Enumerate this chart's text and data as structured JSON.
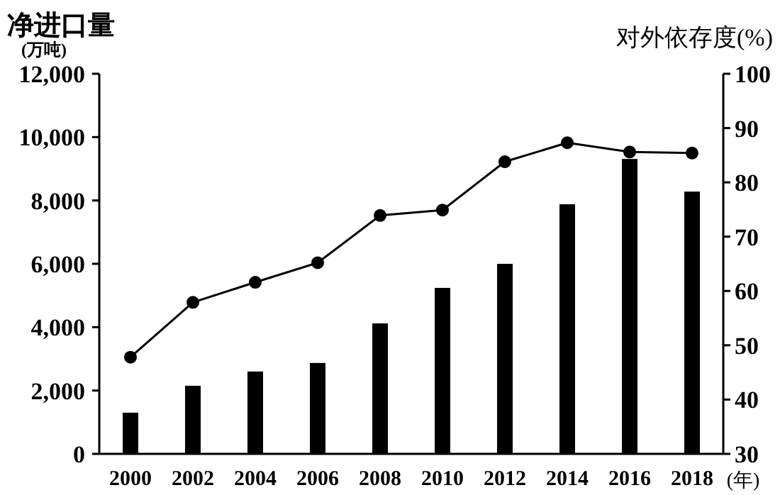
{
  "chart_data": {
    "type": "bar",
    "ylabel": "净进口量\n(万吨)",
    "y2label": "对外依存度(%)",
    "xlabel": "(年)",
    "categories": [
      "2000",
      "2002",
      "2004",
      "2006",
      "2008",
      "2010",
      "2012",
      "2014",
      "2016",
      "2018"
    ],
    "series": [
      {
        "color": "#000000",
        "values": [
          1300,
          2150,
          2600,
          2870,
          4120,
          5240,
          6000,
          7880,
          9310,
          8280
        ]
      },
      {
        "type": "line",
        "axis": "y2",
        "color": "#000000",
        "values": [
          47.8,
          57.9,
          61.6,
          65.2,
          73.9,
          74.9,
          83.8,
          87.3,
          85.6,
          85.4
        ]
      }
    ],
    "ylim": [
      0,
      12000
    ],
    "yticks": [
      {
        "value": 0,
        "label": "0"
      },
      {
        "value": 2000,
        "label": "2,000"
      },
      {
        "value": 4000,
        "label": "4,000"
      },
      {
        "value": 6000,
        "label": "6,000"
      },
      {
        "value": 8000,
        "label": "8,000"
      },
      {
        "value": 10000,
        "label": "10,000"
      },
      {
        "value": 12000,
        "label": "12,000"
      }
    ],
    "y2lim": [
      30,
      100
    ],
    "y2ticks": [
      30,
      40,
      50,
      60,
      70,
      80,
      90,
      100
    ],
    "marker": "circle",
    "grid": false
  }
}
